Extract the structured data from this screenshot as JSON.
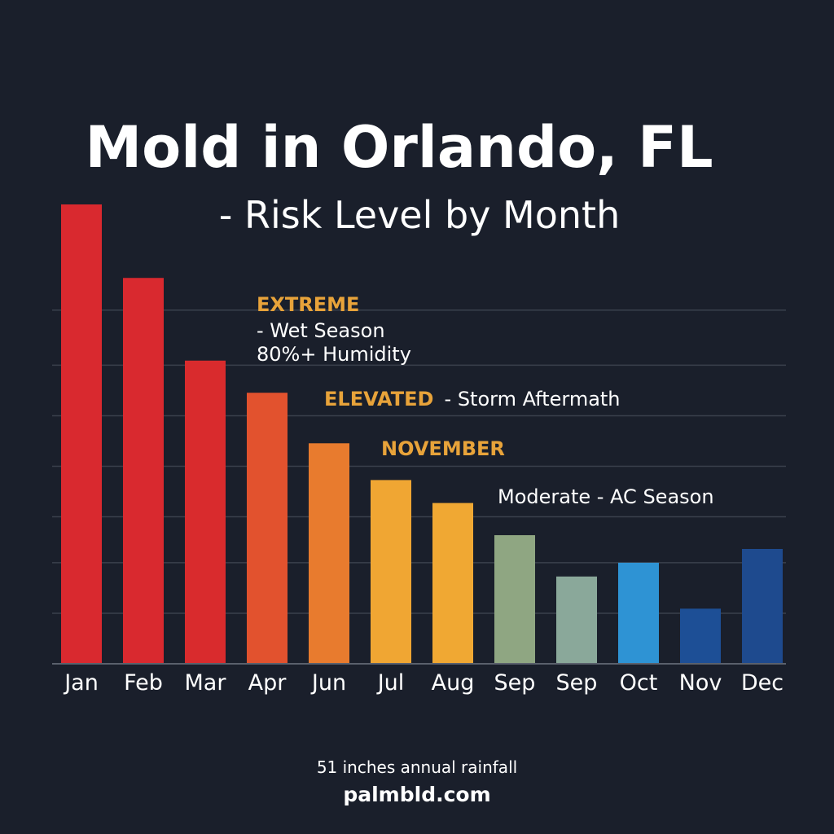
{
  "chart_data": {
    "type": "bar",
    "title": "Mold in Orlando, FL",
    "subtitle": "- Risk Level by Month",
    "categories": [
      "Jan",
      "Feb",
      "Mar",
      "Apr",
      "Jun",
      "Jul",
      "Aug",
      "Sep",
      "Sep",
      "Oct",
      "Nov",
      "Dec"
    ],
    "values": [
      100,
      84,
      66,
      59,
      48,
      40,
      35,
      28,
      19,
      22,
      12,
      25
    ],
    "colors": [
      "#d9292f",
      "#d9292f",
      "#d92b2d",
      "#e2522e",
      "#e87b2e",
      "#f0a633",
      "#f0a833",
      "#8fa682",
      "#8aa89a",
      "#2e93d4",
      "#1d4f96",
      "#1e4a8e"
    ],
    "ylim": [
      0,
      100
    ],
    "grid": true,
    "xlabel": "",
    "ylabel": "",
    "annotations": {
      "extreme": "EXTREME",
      "wet_season": "- Wet Season",
      "humidity": "80%+ Humidity",
      "elevated": "ELEVATED",
      "storm": "- Storm Aftermath",
      "november": "NOVEMBER",
      "moderate": "Moderate - AC Season"
    },
    "footer": {
      "rainfall": "51 inches annual rainfall",
      "source": "palmbld.com"
    }
  }
}
